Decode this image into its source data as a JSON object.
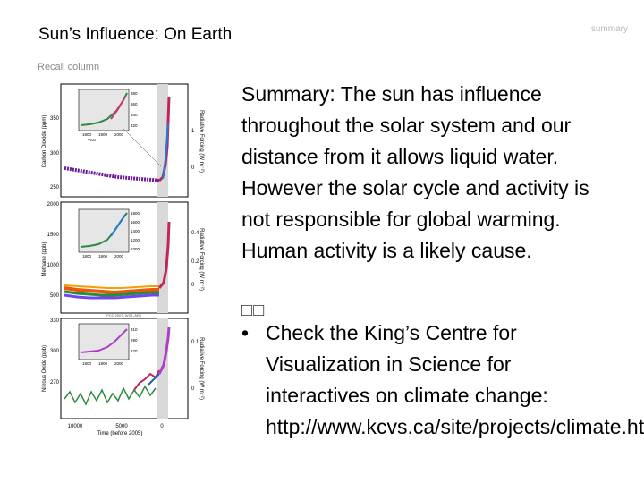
{
  "slide": {
    "title": "Sun’s Influence: On Earth",
    "corner_label": "summary",
    "recall_label": "Recall column",
    "summary_text": "Summary:   The sun has influence throughout the solar system and our distance from it allows liquid water.  However the solar cycle and activity is not responsible for global warming. Human activity is a likely cause.",
    "bullet_marker": "•",
    "bullet_text": "Check the King’s Centre for Visualization in Science for interactives on climate change: http://www.kcvs.ca/site/projects/climate.html",
    "glyph_boxes": "□□"
  },
  "figure": {
    "panels": [
      {
        "ylabel": "Carbon Dioxide (ppm)",
        "y2label": "Radiative Forcing (W m⁻²)",
        "yticks": [
          "350",
          "300",
          "250"
        ],
        "y2ticks": [
          "1",
          "0"
        ],
        "inset_yticks": [
          "380",
          "360",
          "340",
          "320"
        ],
        "inset_xticks": [
          "1800",
          "1900",
          "2000"
        ],
        "inset_xlabel": "Year"
      },
      {
        "ylabel": "Methane (ppb)",
        "y2label": "Radiative Forcing (W m⁻²)",
        "yticks": [
          "2000",
          "1500",
          "1000",
          "500"
        ],
        "y2ticks": [
          "0.4",
          "0.2",
          "0"
        ],
        "inset_yticks": [
          "1800",
          "1600",
          "1400",
          "1200",
          "1000"
        ],
        "inset_xticks": [
          "1800",
          "1900",
          "2000"
        ]
      },
      {
        "ylabel": "Nitrous Oxide (ppb)",
        "y2label": "Radiative Forcing (W m⁻²)",
        "yticks": [
          "330",
          "300",
          "270"
        ],
        "y2ticks": [
          "0.1",
          "0"
        ],
        "inset_yticks": [
          "310",
          "290",
          "270"
        ],
        "inset_xticks": [
          "1800",
          "1900",
          "2000"
        ],
        "credit": "IPCC 2007: WG1-AR4"
      }
    ],
    "xticks": [
      "10000",
      "5000",
      "0"
    ],
    "xlabel": "Time (before 2005)"
  }
}
